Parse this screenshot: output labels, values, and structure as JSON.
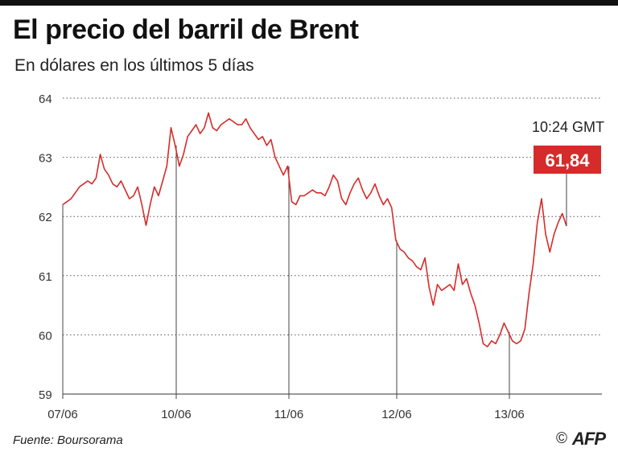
{
  "header": {
    "title": "El precio del barril de Brent",
    "subtitle": "En dólares en los últimos 5 días"
  },
  "footer": {
    "source": "Fuente: Boursorama",
    "copyright_symbol": "©",
    "agency": "AFP"
  },
  "chart_data": {
    "type": "line",
    "title": "El precio del barril de Brent",
    "subtitle": "En dólares en los últimos 5 días",
    "xlabel": "",
    "ylabel": "",
    "ylim": [
      59,
      64
    ],
    "yticks": [
      "59",
      "60",
      "61",
      "62",
      "63",
      "64"
    ],
    "xticks": [
      "07/06",
      "10/06",
      "11/06",
      "12/06",
      "13/06"
    ],
    "grid": "horizontal dotted",
    "series_color": "#d62b2b",
    "last_value_label": "61,84",
    "last_time_label": "10:24 GMT",
    "series": [
      {
        "values": [
          62.2,
          62.25,
          62.3,
          62.4,
          62.5,
          62.55,
          62.6,
          62.55,
          62.65,
          63.05,
          62.8,
          62.7,
          62.55,
          62.5,
          62.6,
          62.45,
          62.3,
          62.35,
          62.5,
          62.2,
          61.85,
          62.2,
          62.5,
          62.35,
          62.6,
          62.85,
          63.5,
          63.2,
          62.85,
          63.05,
          63.35,
          63.45,
          63.55,
          63.4,
          63.5,
          63.75,
          63.5,
          63.45,
          63.55,
          63.6,
          63.65,
          63.6,
          63.55,
          63.55,
          63.65,
          63.5,
          63.4,
          63.3,
          63.35,
          63.2,
          63.3,
          63.0,
          62.85,
          62.7,
          62.85,
          62.25,
          62.2,
          62.35,
          62.35,
          62.4,
          62.45,
          62.4,
          62.4,
          62.35,
          62.5,
          62.7,
          62.6,
          62.3,
          62.2,
          62.4,
          62.55,
          62.65,
          62.45,
          62.3,
          62.4,
          62.55,
          62.35,
          62.2,
          62.3,
          62.15,
          61.6,
          61.45,
          61.4,
          61.3,
          61.25,
          61.15,
          61.1,
          61.3,
          60.8,
          60.5,
          60.85,
          60.75,
          60.8,
          60.85,
          60.75,
          61.2,
          60.85,
          60.95,
          60.7,
          60.5,
          60.2,
          59.85,
          59.8,
          59.9,
          59.85,
          60.0,
          60.2,
          60.05,
          59.9,
          59.85,
          59.9,
          60.1,
          60.7,
          61.2,
          61.9,
          62.3,
          61.7,
          61.4,
          61.7,
          61.9,
          62.05,
          61.84
        ]
      }
    ]
  }
}
